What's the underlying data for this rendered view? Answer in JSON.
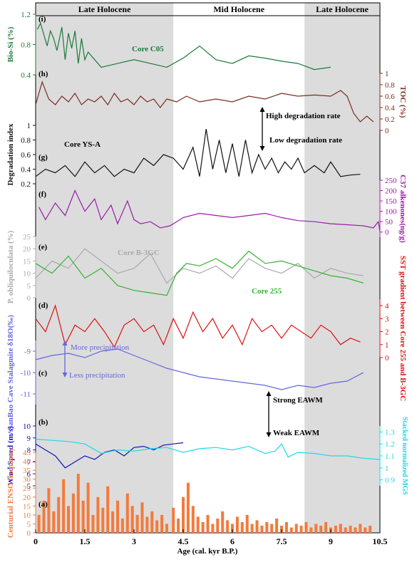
{
  "chart_data": {
    "type": "line",
    "xlabel": "Age (cal. kyr B.P.)",
    "x_ticks": [
      "0",
      "1.5",
      "3",
      "4.5",
      "6",
      "7.5",
      "9",
      "10.5"
    ],
    "xlim": [
      0,
      10.5
    ],
    "periods": [
      {
        "label": "Late Holocene",
        "start": 0,
        "end": 4.2,
        "shaded": true
      },
      {
        "label": "Mid Holocene",
        "start": 4.2,
        "end": 8.2,
        "shaded": false
      },
      {
        "label": "Late Holocene",
        "start": 8.2,
        "end": 10.5,
        "shaded": true
      }
    ],
    "panels": [
      {
        "id": "i",
        "label": "(i)",
        "ylabel": "Bio-Si (%)",
        "axis_side": "left",
        "color": "#1a7a3a",
        "ylim": [
          0.4,
          1.2
        ],
        "ticks": [
          "0.4",
          "0.8",
          "1.2"
        ],
        "annotations": [
          "Core C05"
        ],
        "series": [
          {
            "x": [
              0.05,
              0.15,
              0.25,
              0.35,
              0.45,
              0.55,
              0.65,
              0.8,
              0.9,
              1.0,
              1.1,
              1.2,
              1.3,
              1.4,
              1.5,
              1.6,
              2.0,
              2.5,
              3.0,
              3.5,
              4.0,
              4.5,
              5.0,
              5.5,
              6.0,
              6.5,
              7.0,
              7.5,
              8.0,
              8.5,
              9.0
            ],
            "y": [
              1.0,
              1.08,
              0.93,
              0.78,
              0.98,
              0.88,
              0.72,
              1.03,
              0.6,
              0.95,
              0.75,
              0.98,
              0.55,
              0.88,
              0.6,
              0.7,
              0.5,
              0.55,
              0.6,
              0.55,
              0.5,
              0.62,
              0.78,
              0.6,
              0.55,
              0.65,
              0.62,
              0.58,
              0.55,
              0.47,
              0.5
            ]
          }
        ]
      },
      {
        "id": "h",
        "label": "(h)",
        "ylabel": "TOC (%)",
        "axis_side": "right",
        "color": "#7a2e1e",
        "ylim": [
          0,
          1.0
        ],
        "ticks": [
          "0",
          "0.2",
          "0.4",
          "0.6",
          "0.8",
          "1"
        ],
        "annotations": [],
        "series": [
          {
            "x": [
              0,
              0.2,
              0.4,
              0.6,
              0.8,
              1.0,
              1.2,
              1.4,
              1.6,
              1.8,
              2.0,
              2.2,
              2.4,
              2.6,
              2.8,
              3.0,
              3.2,
              3.4,
              3.6,
              3.8,
              4.0,
              4.3,
              4.6,
              5.0,
              5.5,
              6.0,
              6.5,
              7.0,
              7.5,
              8.0,
              8.5,
              9.0,
              9.3,
              9.5,
              9.7,
              9.9,
              10.1,
              10.3
            ],
            "y": [
              0.45,
              0.85,
              0.55,
              0.45,
              0.6,
              0.5,
              0.65,
              0.45,
              0.55,
              0.5,
              0.6,
              0.45,
              0.65,
              0.5,
              0.55,
              0.45,
              0.6,
              0.5,
              0.55,
              0.4,
              0.55,
              0.5,
              0.6,
              0.5,
              0.55,
              0.5,
              0.6,
              0.55,
              0.65,
              0.6,
              0.62,
              0.6,
              0.7,
              0.6,
              0.3,
              0.15,
              0.25,
              0.15
            ]
          }
        ]
      },
      {
        "id": "g",
        "label": "(g)",
        "ylabel": "Degradation index",
        "axis_side": "left",
        "color": "#111111",
        "ylim": [
          0.2,
          1.0
        ],
        "ticks": [
          "0.2",
          "0.4",
          "0.6",
          "0.8",
          "1"
        ],
        "annotations": [
          "Core YS-A",
          "High degradation rate",
          "Low degradation rate"
        ],
        "series": [
          {
            "x": [
              0,
              0.3,
              0.6,
              0.9,
              1.2,
              1.5,
              1.8,
              2.1,
              2.4,
              2.7,
              3.0,
              3.3,
              3.6,
              3.9,
              4.2,
              4.5,
              4.8,
              5.0,
              5.2,
              5.4,
              5.6,
              5.8,
              6.0,
              6.2,
              6.4,
              6.6,
              6.8,
              7.0,
              7.2,
              7.4,
              7.6,
              7.8,
              8.0,
              8.2,
              8.5,
              8.8,
              9.0,
              9.3,
              9.6,
              9.9
            ],
            "y": [
              0.3,
              0.4,
              0.35,
              0.45,
              0.3,
              0.5,
              0.35,
              0.45,
              0.3,
              0.4,
              0.35,
              0.55,
              0.45,
              0.6,
              0.55,
              0.4,
              0.7,
              0.3,
              0.95,
              0.4,
              0.8,
              0.35,
              0.75,
              0.3,
              0.8,
              0.35,
              0.6,
              0.4,
              0.55,
              0.35,
              0.5,
              0.4,
              0.55,
              0.35,
              0.45,
              0.35,
              0.5,
              0.3,
              0.32,
              0.33
            ]
          }
        ]
      },
      {
        "id": "f",
        "label": "(f)",
        "ylabel": "C37 alkenones(ng/g)",
        "axis_side": "right",
        "color": "#9b1ba8",
        "ylim": [
          -25,
          250
        ],
        "ticks": [
          "0",
          "50",
          "100",
          "150",
          "200",
          "250"
        ],
        "annotations": [],
        "series": [
          {
            "x": [
              0.1,
              0.3,
              0.6,
              0.9,
              1.2,
              1.5,
              1.8,
              2.0,
              2.3,
              2.5,
              2.8,
              3.0,
              3.2,
              3.5,
              3.8,
              4.1,
              4.5,
              5.0,
              5.5,
              6.0,
              6.5,
              7.0,
              7.5,
              8.0,
              8.5,
              9.0,
              9.5,
              10.0,
              10.3,
              10.45,
              10.5
            ],
            "y": [
              120,
              60,
              140,
              80,
              200,
              100,
              160,
              60,
              130,
              40,
              150,
              60,
              40,
              50,
              20,
              30,
              70,
              90,
              80,
              70,
              80,
              90,
              70,
              55,
              50,
              40,
              35,
              30,
              20,
              50,
              5
            ]
          }
        ]
      },
      {
        "id": "e",
        "label": "(e)",
        "ylabel": "P. obliquiloculata (%)",
        "axis_side": "left",
        "color": "#aaaaaa",
        "ylim": [
          0,
          25
        ],
        "ticks": [
          "0",
          "5",
          "10",
          "15",
          "20",
          "25"
        ],
        "annotations": [
          "Core B-3GC",
          "Core 255"
        ],
        "series": [
          {
            "name": "Core B-3GC",
            "color": "#aaaaaa",
            "x": [
              0,
              0.5,
              1.0,
              1.5,
              2.0,
              2.5,
              3.0,
              3.5,
              4.0,
              4.5,
              5.0,
              5.5,
              6.0,
              6.5,
              7.0,
              7.5,
              8.0,
              8.5,
              9.0,
              9.5,
              10.0
            ],
            "y": [
              8,
              15,
              12,
              20,
              15,
              10,
              12,
              18,
              6,
              12,
              10,
              13,
              8,
              16,
              12,
              10,
              14,
              8,
              12,
              10,
              9
            ]
          },
          {
            "name": "Core 255",
            "color": "#33b233",
            "x": [
              0,
              0.5,
              1.0,
              1.5,
              2.0,
              2.5,
              3.0,
              3.5,
              4.0,
              4.3,
              4.6,
              5.0,
              5.5,
              6.0,
              6.5,
              7.0,
              7.5,
              8.0,
              8.5,
              9.0,
              9.5,
              10.0
            ],
            "y": [
              14,
              10,
              17,
              8,
              12,
              5,
              3,
              2,
              1,
              10,
              14,
              13,
              16,
              12,
              19,
              14,
              15,
              13,
              11,
              9,
              8,
              6
            ]
          }
        ]
      },
      {
        "id": "d",
        "label": "(d)",
        "ylabel": "SST gradient between Core 255 and B-3GC",
        "axis_side": "right",
        "color": "#dd1111",
        "ylim": [
          0,
          4.5
        ],
        "ticks": [
          "0",
          "1",
          "2",
          "3",
          "4"
        ],
        "annotations": [],
        "series": [
          {
            "x": [
              0,
              0.3,
              0.6,
              0.9,
              1.2,
              1.5,
              1.8,
              2.1,
              2.4,
              2.7,
              3.0,
              3.3,
              3.6,
              3.9,
              4.2,
              4.5,
              4.8,
              5.1,
              5.4,
              5.7,
              6.0,
              6.3,
              6.6,
              6.9,
              7.2,
              7.5,
              7.8,
              8.1,
              8.4,
              8.7,
              9.0,
              9.3,
              9.6,
              9.9
            ],
            "y": [
              3,
              2,
              4,
              1,
              2.5,
              2,
              3,
              2,
              0.8,
              2.5,
              3,
              2,
              2.5,
              1,
              3,
              1.5,
              3.5,
              2,
              3,
              1.5,
              2.5,
              1,
              3,
              2,
              2.5,
              1.5,
              2.5,
              2,
              1.5,
              2.5,
              2,
              1,
              1.5,
              1.2
            ]
          }
        ]
      },
      {
        "id": "c",
        "label": "(c)",
        "ylabel": "SanBao Cave Stalagmite δ18O(‰)",
        "axis_side": "left",
        "color": "#6666e0",
        "ylim": [
          -11.5,
          -8.5
        ],
        "ticks": [
          "-11",
          "-10",
          "-9"
        ],
        "annotations": [
          "More precipitation",
          "Less precipitation"
        ],
        "series": [
          {
            "x": [
              0,
              0.5,
              1.0,
              1.5,
              2.0,
              2.5,
              3.0,
              3.5,
              4.0,
              4.5,
              5.0,
              5.5,
              6.0,
              6.5,
              7.0,
              7.5,
              8.0,
              8.5,
              9.0,
              9.5,
              10.0
            ],
            "y": [
              -9.4,
              -9.2,
              -9.1,
              -9.3,
              -9.0,
              -8.9,
              -9.2,
              -9.5,
              -9.8,
              -10.0,
              -10.2,
              -10.3,
              -10.4,
              -10.5,
              -10.6,
              -10.8,
              -10.6,
              -10.7,
              -10.5,
              -10.4,
              -10.0
            ]
          }
        ]
      },
      {
        "id": "b",
        "label": "(b)",
        "ylabel": "Wind Speed (m/s)",
        "axis_side": "left",
        "color": "#1111bb",
        "ylim": [
          5,
          10
        ],
        "ticks": [
          "5",
          "6",
          "7",
          "8",
          "9",
          "10"
        ],
        "right_axis": {
          "ylabel": "Stacked normalized MGS",
          "color": "#1fd8e8",
          "ylim": [
            0.85,
            1.35
          ],
          "ticks": [
            "0.9",
            "1",
            "1.1",
            "1.2",
            "1.3"
          ]
        },
        "annotations": [
          "Strong EAWM",
          "Weak EAWM"
        ],
        "series": [
          {
            "name": "Wind Speed",
            "color": "#1111bb",
            "x": [
              0,
              0.3,
              0.6,
              0.9,
              1.2,
              1.5,
              1.8,
              2.1,
              2.4,
              2.7,
              3.0,
              3.3,
              3.6,
              3.9,
              4.2,
              4.5
            ],
            "y": [
              8.5,
              8,
              7.5,
              6.5,
              7,
              7.5,
              7.2,
              7.8,
              8,
              7.5,
              8.2,
              8.3,
              8,
              8.4,
              8.5,
              8.6
            ]
          },
          {
            "name": "Stacked normalized MGS",
            "color": "#1fd8e8",
            "axis": "right",
            "x": [
              0,
              0.5,
              1.0,
              1.5,
              2.0,
              2.5,
              3.0,
              3.5,
              4.0,
              4.5,
              5.0,
              5.5,
              6.0,
              6.5,
              7.0,
              7.3,
              7.5,
              7.7,
              8.0,
              8.5,
              9.0,
              9.5,
              10.0,
              10.5
            ],
            "y": [
              1.24,
              1.23,
              1.22,
              1.2,
              1.12,
              1.15,
              1.14,
              1.16,
              1.17,
              1.13,
              1.16,
              1.17,
              1.15,
              1.18,
              1.12,
              1.14,
              1.2,
              1.09,
              1.13,
              1.12,
              1.1,
              1.1,
              1.08,
              1.07
            ]
          }
        ]
      },
      {
        "id": "a",
        "label": "(a)",
        "ylabel": "Centurial ENSO frequency",
        "axis_side": "left",
        "color": "#f47a3c",
        "ylim": [
          0,
          45
        ],
        "ticks": [
          "0",
          "5",
          "10",
          "15",
          "20",
          "25",
          "30",
          "35",
          "40",
          "45"
        ],
        "annotations": [],
        "bars": {
          "x": [
            0.1,
            0.25,
            0.4,
            0.55,
            0.7,
            0.85,
            1.0,
            1.15,
            1.3,
            1.45,
            1.6,
            1.75,
            1.9,
            2.05,
            2.2,
            2.35,
            2.5,
            2.65,
            2.8,
            2.95,
            3.1,
            3.25,
            3.4,
            3.55,
            3.7,
            3.85,
            4.0,
            4.2,
            4.35,
            4.5,
            4.65,
            4.8,
            4.95,
            5.1,
            5.25,
            5.4,
            5.55,
            5.7,
            5.85,
            6.0,
            6.15,
            6.3,
            6.45,
            6.6,
            6.75,
            6.9,
            7.05,
            7.2,
            7.35,
            7.5,
            7.65,
            7.8,
            7.95,
            8.1,
            8.25,
            8.4,
            8.55,
            8.7,
            8.85,
            9.0,
            9.15,
            9.3,
            9.45,
            9.6,
            9.75,
            9.9,
            10.05,
            10.2
          ],
          "y": [
            10,
            18,
            25,
            12,
            20,
            30,
            15,
            22,
            33,
            18,
            28,
            10,
            20,
            14,
            26,
            12,
            18,
            8,
            22,
            15,
            10,
            17,
            9,
            12,
            7,
            10,
            5,
            14,
            8,
            20,
            28,
            15,
            9,
            6,
            10,
            5,
            8,
            12,
            7,
            5,
            9,
            6,
            10,
            5,
            7,
            4,
            6,
            5,
            8,
            4,
            6,
            3,
            5,
            4,
            6,
            3,
            5,
            4,
            6,
            3,
            4,
            5,
            3,
            4,
            3,
            5,
            3,
            4
          ]
        }
      }
    ]
  }
}
